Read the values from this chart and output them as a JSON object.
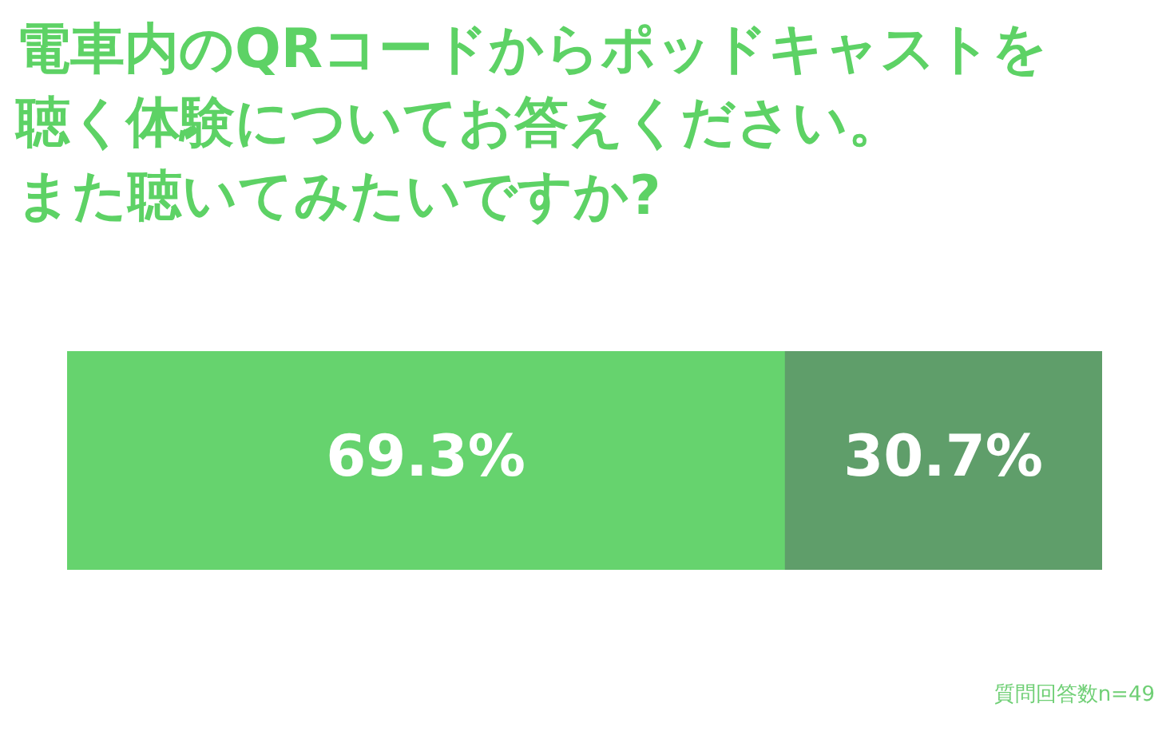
{
  "chart_data": {
    "type": "bar",
    "title": "電車内のQRコードからポッドキャストを聴く体験についてお答えください。",
    "subtitle": "また聴いてみたいですか?",
    "orientation": "horizontal",
    "stacked": true,
    "categories": [
      null
    ],
    "legend": false,
    "tick_labels": false,
    "series": [
      {
        "color": "#66d36e",
        "values": [
          69.3
        ],
        "value_labels": [
          "69.3%"
        ]
      },
      {
        "color": "#5f9e6a",
        "values": [
          30.7
        ],
        "value_labels": [
          "30.7%"
        ]
      }
    ],
    "annotations": [
      "質問回答数n=49"
    ]
  }
}
